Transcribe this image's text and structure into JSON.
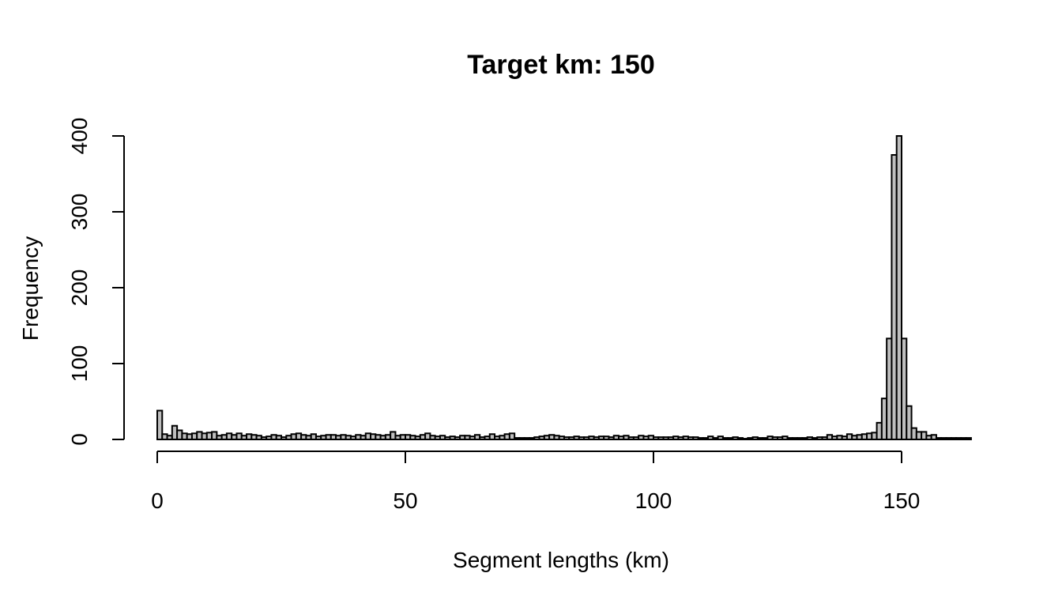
{
  "chart_data": {
    "type": "bar",
    "title": "Target km: 150",
    "xlabel": "Segment lengths (km)",
    "ylabel": "Frequency",
    "xlim": [
      0,
      164
    ],
    "ylim": [
      0,
      400
    ],
    "xticks": [
      0,
      50,
      100,
      150
    ],
    "yticks": [
      0,
      100,
      200,
      300,
      400
    ],
    "xticks_labels": [
      "0",
      "50",
      "100",
      "150"
    ],
    "yticks_labels": [
      "0",
      "100",
      "200",
      "300",
      "400"
    ],
    "bin_width": 1,
    "bin_start": 0,
    "grid": false,
    "values": [
      38,
      7,
      5,
      18,
      12,
      8,
      7,
      8,
      10,
      8,
      9,
      10,
      5,
      6,
      8,
      6,
      8,
      5,
      7,
      6,
      5,
      3,
      4,
      6,
      5,
      3,
      5,
      7,
      8,
      6,
      5,
      7,
      4,
      5,
      6,
      6,
      5,
      6,
      5,
      4,
      6,
      5,
      8,
      7,
      6,
      5,
      6,
      10,
      5,
      6,
      6,
      5,
      4,
      6,
      8,
      5,
      4,
      5,
      3,
      4,
      3,
      5,
      5,
      4,
      6,
      3,
      4,
      7,
      4,
      5,
      7,
      8,
      2,
      2,
      2,
      2,
      3,
      4,
      5,
      6,
      5,
      4,
      3,
      3,
      4,
      3,
      3,
      4,
      3,
      4,
      4,
      3,
      5,
      4,
      5,
      3,
      3,
      5,
      4,
      5,
      3,
      3,
      3,
      3,
      4,
      3,
      4,
      3,
      3,
      2,
      2,
      4,
      2,
      4,
      2,
      2,
      3,
      2,
      1,
      2,
      3,
      2,
      2,
      4,
      3,
      3,
      4,
      2,
      2,
      2,
      2,
      3,
      2,
      3,
      3,
      6,
      4,
      5,
      4,
      7,
      5,
      6,
      7,
      8,
      9,
      22,
      54,
      133,
      375,
      400,
      133,
      44,
      15,
      10,
      10,
      5,
      6,
      2,
      2,
      2,
      2,
      2,
      2,
      2
    ]
  }
}
